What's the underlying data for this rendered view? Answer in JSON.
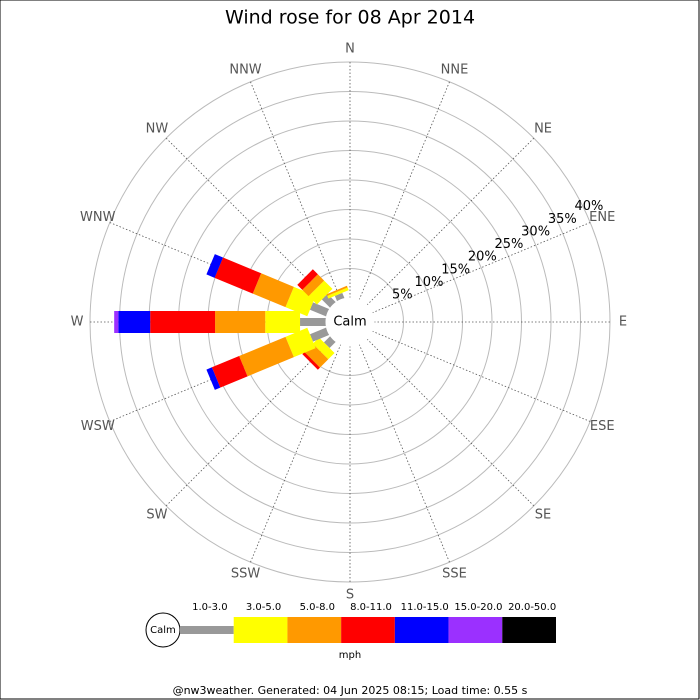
{
  "chart_data": {
    "type": "windrose",
    "title": "Wind rose for 08 Apr 2014",
    "categories": [
      "N",
      "NNE",
      "NE",
      "ENE",
      "E",
      "ESE",
      "SE",
      "SSE",
      "S",
      "SSW",
      "SW",
      "WSW",
      "W",
      "WNW",
      "NW",
      "NNW"
    ],
    "center_label": "Calm",
    "rlim": [
      0,
      40
    ],
    "rticks": [
      {
        "value": 5,
        "label": "5%"
      },
      {
        "value": 10,
        "label": "10%"
      },
      {
        "value": 15,
        "label": "15%"
      },
      {
        "value": 20,
        "label": "20%"
      },
      {
        "value": 25,
        "label": "25%"
      },
      {
        "value": 30,
        "label": "30%"
      },
      {
        "value": 35,
        "label": "35%"
      },
      {
        "value": 40,
        "label": "40%"
      }
    ],
    "legend_unit": "mph",
    "series": [
      {
        "name": "1.0-3.0",
        "color": "#999999",
        "values": [
          0,
          0,
          0,
          0,
          0,
          0,
          0,
          0,
          0,
          0,
          1.5,
          3,
          4.4,
          3,
          2,
          1
        ]
      },
      {
        "name": "3.0-5.0",
        "color": "#ffff00",
        "values": [
          0,
          0,
          0,
          0,
          0,
          0,
          0,
          0,
          0,
          0,
          1.5,
          4,
          5.9,
          4,
          2,
          0.5
        ]
      },
      {
        "name": "5.0-8.0",
        "color": "#ff9900",
        "values": [
          0,
          0,
          0,
          0,
          0,
          0,
          0,
          0,
          0,
          0,
          2,
          8.5,
          8.5,
          6,
          1.5,
          0.3
        ]
      },
      {
        "name": "8.0-11.0",
        "color": "#ff0000",
        "values": [
          0,
          0,
          0,
          0,
          0,
          0,
          0,
          0,
          0,
          0,
          0.5,
          5,
          11,
          7,
          1.2,
          0
        ]
      },
      {
        "name": "11.0-15.0",
        "color": "#0000ff",
        "values": [
          0,
          0,
          0,
          0,
          0,
          0,
          0,
          0,
          0,
          0,
          0,
          1,
          5.4,
          1.5,
          0,
          0
        ]
      },
      {
        "name": "15.0-20.0",
        "color": "#9b30ff",
        "values": [
          0,
          0,
          0,
          0,
          0,
          0,
          0,
          0,
          0,
          0,
          0,
          0,
          0.7,
          0,
          0,
          0
        ]
      },
      {
        "name": "20.0-50.0",
        "color": "#000000",
        "values": [
          0,
          0,
          0,
          0,
          0,
          0,
          0,
          0,
          0,
          0,
          0,
          0,
          0,
          0,
          0,
          0
        ]
      }
    ],
    "footer": "@nw3weather. Generated: 04 Jun 2025 08:15; Load time: 0.55 s"
  }
}
